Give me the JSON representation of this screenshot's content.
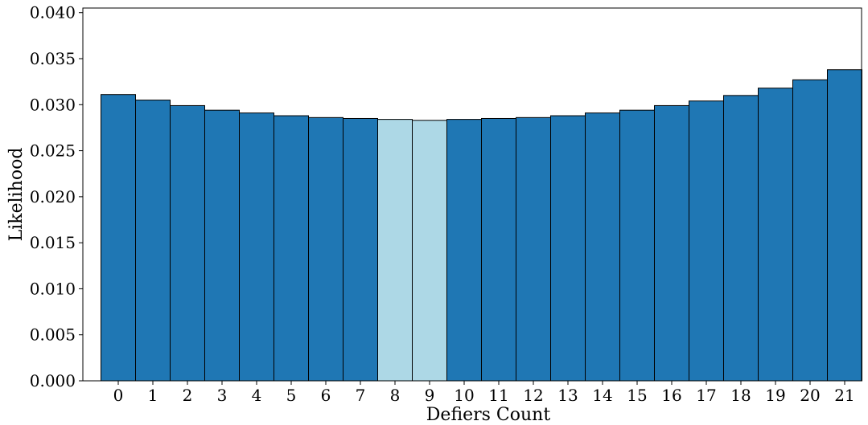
{
  "chart_data": {
    "type": "bar",
    "xlabel": "Defiers Count",
    "ylabel": "Likelihood",
    "categories": [
      "0",
      "1",
      "2",
      "3",
      "4",
      "5",
      "6",
      "7",
      "8",
      "9",
      "10",
      "11",
      "12",
      "13",
      "14",
      "15",
      "16",
      "17",
      "18",
      "19",
      "20",
      "21"
    ],
    "values": [
      0.0311,
      0.0305,
      0.0299,
      0.0294,
      0.0291,
      0.0288,
      0.0286,
      0.0285,
      0.0284,
      0.0283,
      0.0284,
      0.0285,
      0.0286,
      0.0288,
      0.0291,
      0.0294,
      0.0299,
      0.0304,
      0.031,
      0.0318,
      0.0327,
      0.0338
    ],
    "highlighted_categories": [
      "8",
      "9"
    ],
    "colors": {
      "bar": "#1f77b4",
      "highlight": "#add8e6",
      "edge": "#000000"
    },
    "ylim": [
      0,
      0.0405
    ],
    "yticks": [
      "0.000",
      "0.005",
      "0.010",
      "0.015",
      "0.020",
      "0.025",
      "0.030",
      "0.035",
      "0.040"
    ],
    "grid": false
  }
}
